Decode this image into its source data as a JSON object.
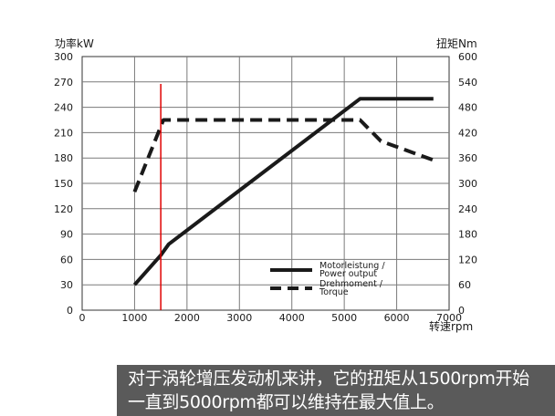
{
  "chart_data": {
    "type": "line",
    "y_left_label": "功率kW",
    "y_right_label": "扭矩Nm",
    "x_label": "转速rpm",
    "x_ticks": [
      0,
      1000,
      2000,
      3000,
      4000,
      5000,
      6000,
      7000
    ],
    "y_left_ticks": [
      0,
      30,
      60,
      90,
      120,
      150,
      180,
      210,
      240,
      270,
      300
    ],
    "y_right_ticks": [
      0,
      60,
      120,
      180,
      240,
      300,
      360,
      420,
      480,
      540,
      600
    ],
    "xlim": [
      0,
      7000
    ],
    "y_left_lim": [
      0,
      300
    ],
    "y_right_lim": [
      0,
      600
    ],
    "grid": true,
    "series": [
      {
        "name": "Motorleistung / Power output",
        "axis": "left",
        "style": "solid",
        "x": [
          1000,
          1500,
          1650,
          5300,
          6700
        ],
        "y": [
          30,
          65,
          78,
          250,
          250
        ]
      },
      {
        "name": "Drehmoment / Torque",
        "axis": "right",
        "style": "dashed",
        "x": [
          1000,
          1550,
          1600,
          5300,
          5700,
          6700
        ],
        "y": [
          280,
          450,
          450,
          450,
          400,
          355
        ]
      }
    ],
    "reference_lines": [
      {
        "x": 1500,
        "color": "#e00000"
      }
    ],
    "legend": {
      "position": "bottom-right",
      "entries": [
        "Motorleistung /\nPower output",
        "Drehmoment /\nTorque"
      ]
    }
  },
  "caption": {
    "line1": "对于涡轮增压发动机来讲，它的扭矩从1500rpm开始",
    "line2": "一直到5000rpm都可以维持在最大值上。"
  },
  "colors": {
    "ink": "#1a1a1a",
    "grid": "#7a7a7a",
    "marker": "#e00000",
    "caption_bg": "#5a5a5a"
  }
}
